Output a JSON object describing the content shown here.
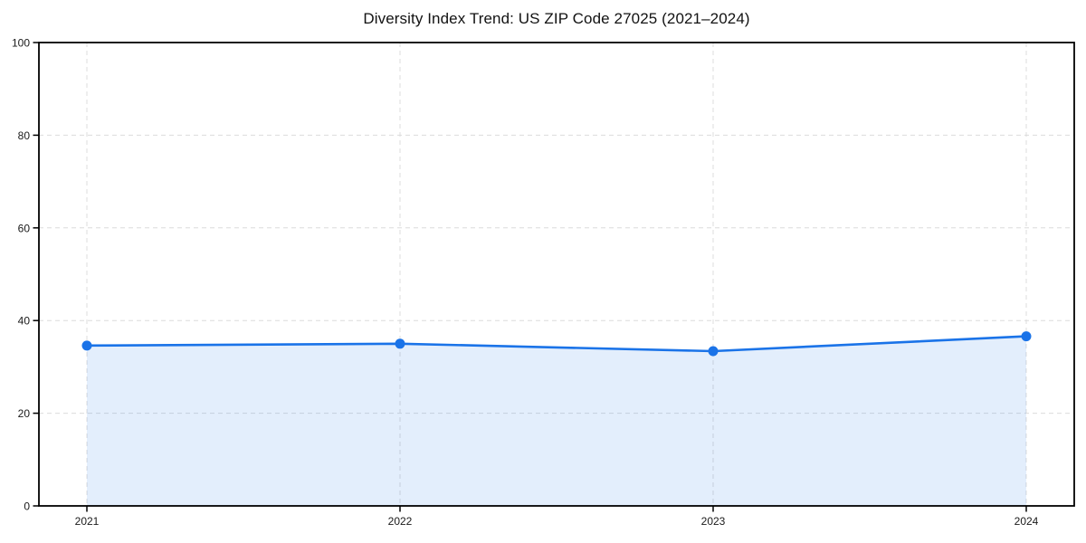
{
  "figure": {
    "background": "#ffffff"
  },
  "chart_data": {
    "type": "area",
    "title": "Diversity Index Trend: US ZIP Code 27025 (2021–2024)",
    "categories": [
      "2021",
      "2022",
      "2023",
      "2024"
    ],
    "x": [
      2021,
      2022,
      2023,
      2024
    ],
    "series": [
      {
        "name": "Diversity Index",
        "values": [
          34.6,
          35.0,
          33.4,
          36.6
        ]
      }
    ],
    "xlabel": "",
    "ylabel": "",
    "ylim": [
      0,
      100
    ],
    "yticks": [
      0,
      20,
      40,
      60,
      80,
      100
    ],
    "grid": true,
    "grid_style": "dashed",
    "legend_position": "none",
    "marker": "circle",
    "colors": {
      "line": "#1a73e8",
      "marker": "#1a73e8",
      "fill": "#1a73e8",
      "fill_opacity": 0.12,
      "grid": "#dcdcdc",
      "axis": "#000000",
      "tick_text": "#1a1a1a",
      "title_text": "#121212",
      "background": "#ffffff"
    }
  }
}
